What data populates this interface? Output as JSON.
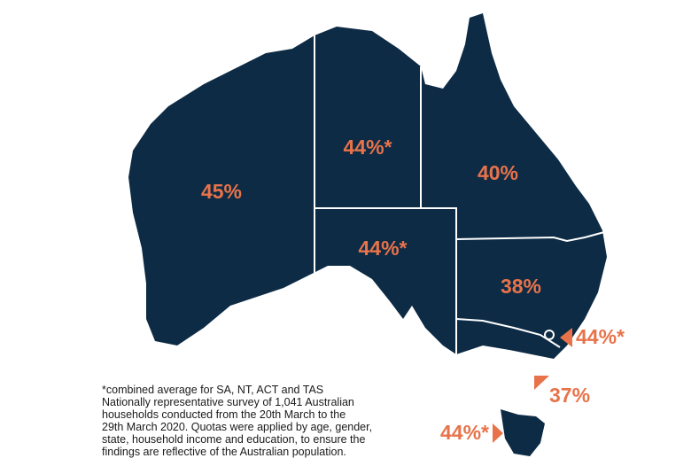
{
  "labels": [
    "45%",
    "44%*",
    "40%",
    "44%*",
    "38%",
    "44%*",
    "37%",
    "44%*"
  ],
  "footnote": [
    "*combined average for SA, NT, ACT and TAS",
    "Nationally representative survey of 1,041 Australian",
    "households conducted from the 20th March  to the",
    "29th March 2020. Quotas were applied by age, gender,",
    "state, household income and education, to ensure the",
    "findings are reflective of the Australian population."
  ]
}
